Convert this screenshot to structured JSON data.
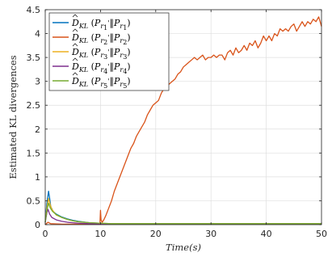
{
  "chart_data": {
    "type": "line",
    "xlabel": "Time(s)",
    "ylabel": "Estimated KL divergences",
    "xlim": [
      0,
      50
    ],
    "ylim": [
      0,
      4.5
    ],
    "xticks": [
      0,
      10,
      20,
      30,
      40,
      50
    ],
    "yticks": [
      0,
      0.5,
      1,
      1.5,
      2,
      2.5,
      3,
      3.5,
      4,
      4.5
    ],
    "grid": true,
    "legend_position": "top-left",
    "series": [
      {
        "name": "D̂KL(Pr1‖Pr1)",
        "color": "#0072BD",
        "x": [
          0,
          0.3,
          0.6,
          0.8,
          1.0,
          1.4,
          2,
          3,
          4,
          5,
          6,
          8,
          10,
          12,
          20,
          30,
          40,
          50
        ],
        "y": [
          0.05,
          0.45,
          0.7,
          0.55,
          0.38,
          0.28,
          0.22,
          0.16,
          0.12,
          0.09,
          0.07,
          0.04,
          0.03,
          0.02,
          0.02,
          0.02,
          0.02,
          0.02
        ]
      },
      {
        "name": "D̂KL(Pr2‖Pr2)",
        "color": "#D95319",
        "x": [
          0,
          0.5,
          1,
          3,
          5,
          8,
          9.9,
          10.0,
          10.1,
          10.3,
          10.6,
          11,
          11.5,
          12,
          12.5,
          13,
          13.5,
          14,
          14.5,
          15,
          15.5,
          16,
          16.5,
          17,
          17.5,
          18,
          18.5,
          19,
          19.5,
          20,
          20.5,
          21,
          21.5,
          22,
          22.5,
          23,
          23.5,
          24,
          24.5,
          25,
          25.5,
          26,
          26.5,
          27,
          27.5,
          28,
          28.5,
          29,
          29.5,
          30,
          30.5,
          31,
          31.5,
          32,
          32.5,
          33,
          33.5,
          34,
          34.5,
          35,
          35.5,
          36,
          36.5,
          37,
          37.5,
          38,
          38.5,
          39,
          39.5,
          40,
          40.5,
          41,
          41.5,
          42,
          42.5,
          43,
          43.5,
          44,
          44.5,
          45,
          45.5,
          46,
          46.5,
          47,
          47.5,
          48,
          48.5,
          49,
          49.5,
          50
        ],
        "y": [
          0.0,
          0.05,
          0.02,
          0.01,
          0.01,
          0.01,
          0.01,
          0.3,
          0.1,
          0.05,
          0.1,
          0.2,
          0.35,
          0.5,
          0.7,
          0.85,
          1.0,
          1.15,
          1.3,
          1.45,
          1.6,
          1.7,
          1.85,
          1.95,
          2.05,
          2.15,
          2.3,
          2.4,
          2.5,
          2.55,
          2.6,
          2.75,
          2.85,
          2.9,
          2.95,
          3.0,
          3.05,
          3.15,
          3.2,
          3.3,
          3.35,
          3.4,
          3.45,
          3.5,
          3.45,
          3.5,
          3.55,
          3.45,
          3.5,
          3.5,
          3.55,
          3.5,
          3.55,
          3.55,
          3.45,
          3.6,
          3.65,
          3.55,
          3.7,
          3.6,
          3.65,
          3.75,
          3.65,
          3.8,
          3.75,
          3.85,
          3.7,
          3.8,
          3.95,
          3.85,
          3.95,
          3.85,
          4.0,
          3.95,
          4.1,
          4.05,
          4.1,
          4.05,
          4.15,
          4.2,
          4.05,
          4.15,
          4.25,
          4.15,
          4.25,
          4.2,
          4.3,
          4.25,
          4.35,
          4.15
        ]
      },
      {
        "name": "D̂KL(Pr3‖Pr3)",
        "color": "#EDB120",
        "x": [
          0,
          0.3,
          0.6,
          0.9,
          1.2,
          1.6,
          2,
          3,
          4,
          5,
          6,
          8,
          10,
          12,
          20,
          30,
          40,
          50
        ],
        "y": [
          0.05,
          0.35,
          0.55,
          0.42,
          0.32,
          0.26,
          0.2,
          0.15,
          0.11,
          0.08,
          0.06,
          0.04,
          0.03,
          0.02,
          0.02,
          0.02,
          0.02,
          0.02
        ]
      },
      {
        "name": "D̂KL(Pr4‖Pr4)",
        "color": "#7E2F8E",
        "x": [
          0,
          0.3,
          0.5,
          0.8,
          1.2,
          2,
          3,
          4,
          5,
          6,
          8,
          10,
          12,
          20,
          30,
          40,
          50
        ],
        "y": [
          0.05,
          0.25,
          0.32,
          0.22,
          0.15,
          0.1,
          0.07,
          0.05,
          0.04,
          0.03,
          0.02,
          0.02,
          0.01,
          0.01,
          0.01,
          0.01,
          0.01
        ]
      },
      {
        "name": "D̂KL(Pr5‖Pr5)",
        "color": "#77AC30",
        "x": [
          0,
          0.3,
          0.6,
          0.9,
          1.3,
          2,
          3,
          4,
          5,
          6,
          8,
          10,
          12,
          20,
          30,
          40,
          50
        ],
        "y": [
          0.05,
          0.3,
          0.45,
          0.35,
          0.28,
          0.21,
          0.15,
          0.11,
          0.08,
          0.06,
          0.04,
          0.03,
          0.02,
          0.02,
          0.02,
          0.02,
          0.02
        ]
      }
    ]
  },
  "legend": [
    {
      "hat": "D",
      "kl": "KL",
      "p1": "P",
      "r1": "r",
      "s1": "1",
      "prime": "'",
      "p2": "P",
      "r2": "r",
      "s2": "1"
    },
    {
      "hat": "D",
      "kl": "KL",
      "p1": "P",
      "r1": "r",
      "s1": "2",
      "prime": "'",
      "p2": "P",
      "r2": "r",
      "s2": "2"
    },
    {
      "hat": "D",
      "kl": "KL",
      "p1": "P",
      "r1": "r",
      "s1": "3",
      "prime": "'",
      "p2": "P",
      "r2": "r",
      "s2": "3"
    },
    {
      "hat": "D",
      "kl": "KL",
      "p1": "P",
      "r1": "r",
      "s1": "4",
      "prime": "'",
      "p2": "P",
      "r2": "r",
      "s2": "4"
    },
    {
      "hat": "D",
      "kl": "KL",
      "p1": "P",
      "r1": "r",
      "s1": "5",
      "prime": "'",
      "p2": "P",
      "r2": "r",
      "s2": "5"
    }
  ]
}
